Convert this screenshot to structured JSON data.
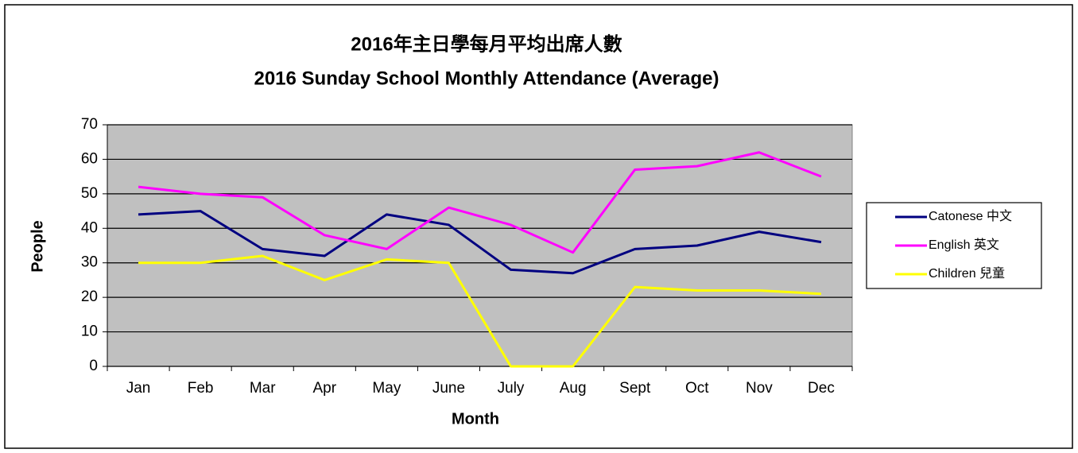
{
  "chart_data": {
    "type": "line",
    "title": "2016年主日學每月平均出席人數",
    "subtitle": "2016 Sunday School Monthly Attendance (Average)",
    "x_label": "Month",
    "y_label": "People",
    "categories": [
      "Jan",
      "Feb",
      "Mar",
      "Apr",
      "May",
      "June",
      "July",
      "Aug",
      "Sept",
      "Oct",
      "Nov",
      "Dec"
    ],
    "series": [
      {
        "name": "Catonese 中文",
        "color": "#000080",
        "values": [
          44,
          45,
          34,
          32,
          44,
          41,
          28,
          27,
          34,
          35,
          39,
          36
        ]
      },
      {
        "name": "English 英文",
        "color": "#ff00ff",
        "values": [
          52,
          50,
          49,
          38,
          34,
          46,
          41,
          33,
          57,
          58,
          62,
          55
        ]
      },
      {
        "name": "Children 兒童",
        "color": "#ffff00",
        "values": [
          30,
          30,
          32,
          25,
          31,
          30,
          0,
          0,
          23,
          22,
          22,
          21
        ]
      }
    ],
    "ylim": [
      0,
      70
    ],
    "yticks": [
      0,
      10,
      20,
      30,
      40,
      50,
      60,
      70
    ],
    "grid": true,
    "plot_background": "#c0c0c0",
    "legend": "right"
  }
}
